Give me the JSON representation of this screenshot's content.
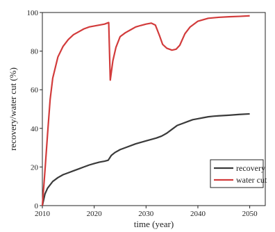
{
  "chart_data": {
    "type": "line",
    "title": "",
    "xlabel": "time (year)",
    "ylabel": "recovery/water cut (%)",
    "xlim": [
      2010,
      2053
    ],
    "ylim": [
      0,
      100
    ],
    "xticks": [
      2010,
      2020,
      2030,
      2040,
      2050
    ],
    "yticks": [
      0,
      20,
      40,
      60,
      80,
      100
    ],
    "grid": false,
    "legend_position": "bottom-right",
    "series": [
      {
        "name": "recovery",
        "color": "#3a3a3a",
        "x": [
          2010,
          2010.5,
          2011,
          2012,
          2013,
          2014,
          2015,
          2016,
          2017,
          2018,
          2019,
          2020,
          2021,
          2022,
          2022.7,
          2023.3,
          2024,
          2025,
          2026,
          2028,
          2030,
          2032,
          2033,
          2034,
          2035,
          2036,
          2037,
          2038,
          2039,
          2040,
          2041,
          2042,
          2043,
          2044,
          2046,
          2048,
          2050
        ],
        "y": [
          0,
          6,
          9,
          12.5,
          14.5,
          16,
          17,
          18,
          19,
          20,
          21,
          21.8,
          22.5,
          23,
          23.5,
          26,
          27.5,
          29,
          30,
          32,
          33.5,
          35,
          36,
          37.5,
          39.5,
          41.5,
          42.5,
          43.5,
          44.5,
          45,
          45.5,
          46,
          46.3,
          46.5,
          46.8,
          47.2,
          47.5
        ]
      },
      {
        "name": "water cut",
        "color": "#d23b3b",
        "x": [
          2010,
          2010.5,
          2011,
          2011.5,
          2012,
          2013,
          2014,
          2015,
          2016,
          2017,
          2018,
          2019,
          2020,
          2021,
          2022,
          2022.8,
          2023.1,
          2023.6,
          2024.2,
          2025,
          2026,
          2027,
          2028,
          2029,
          2030,
          2031,
          2031.8,
          2032.6,
          2033.2,
          2034,
          2035,
          2035.8,
          2036.5,
          2037.5,
          2038.5,
          2040,
          2042,
          2044,
          2046,
          2048,
          2050
        ],
        "y": [
          0,
          18,
          37,
          55,
          66,
          77,
          82.5,
          86,
          88.5,
          90,
          91.5,
          92.5,
          93,
          93.5,
          94,
          94.8,
          65,
          75,
          82,
          87.5,
          89.5,
          91,
          92.5,
          93.3,
          94,
          94.5,
          93.5,
          88,
          83.5,
          81.5,
          80.5,
          81,
          83,
          89,
          92.5,
          95.5,
          97,
          97.5,
          97.8,
          98,
          98.3
        ]
      }
    ]
  }
}
